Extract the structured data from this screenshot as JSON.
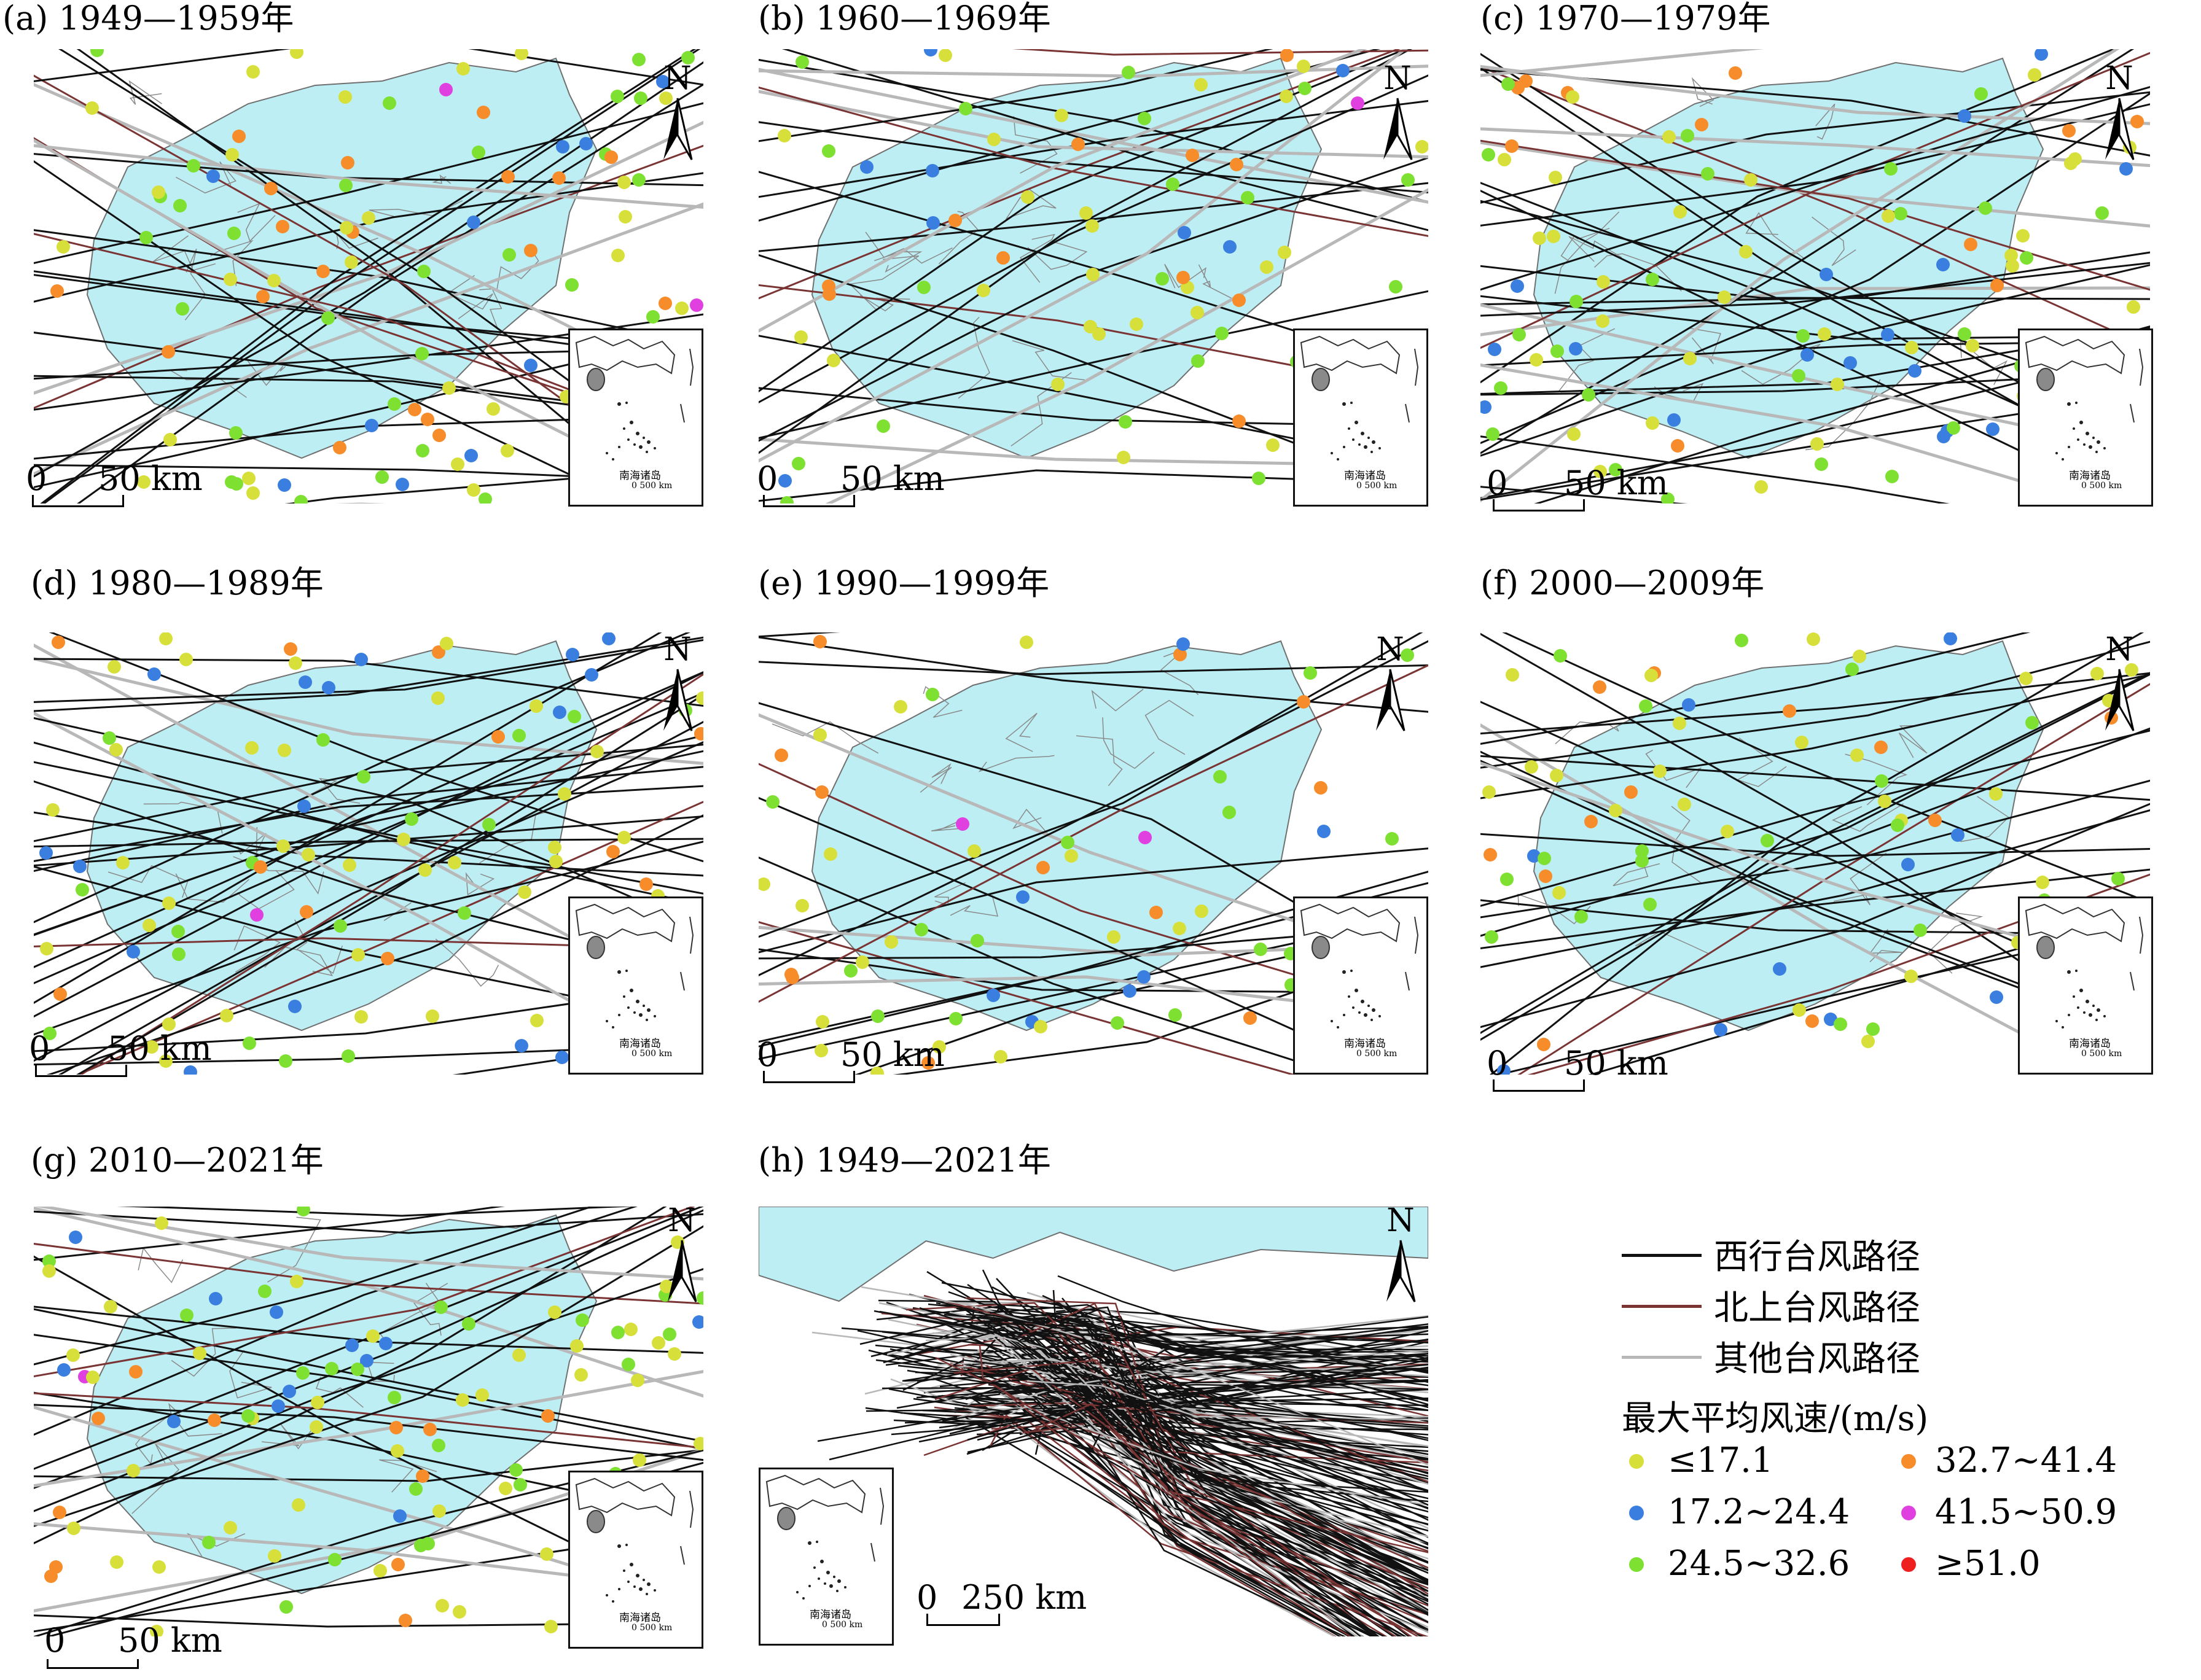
{
  "panels": [
    {
      "id": "a",
      "title": "(a) 1949—1959年",
      "scale_zero": "0",
      "scale_text": "50 km",
      "north": "N",
      "inset_label": "南海诸岛",
      "inset_scale": "0    500 km",
      "seed": 11,
      "n_lines": 34,
      "n_dots": 95
    },
    {
      "id": "b",
      "title": "(b) 1960—1969年",
      "scale_zero": "0",
      "scale_text": "50 km",
      "north": "N",
      "inset_label": "南海诸岛",
      "inset_scale": "0    500 km",
      "seed": 23,
      "n_lines": 28,
      "n_dots": 70
    },
    {
      "id": "c",
      "title": "(c) 1970—1979年",
      "scale_zero": "0",
      "scale_text": "50 km",
      "north": "N",
      "inset_label": "南海诸岛",
      "inset_scale": "0    500 km",
      "seed": 37,
      "n_lines": 36,
      "n_dots": 90
    },
    {
      "id": "d",
      "title": "(d) 1980—1989年",
      "scale_zero": "0",
      "scale_text": "50 km",
      "north": "N",
      "inset_label": "南海诸岛",
      "inset_scale": "0    500 km",
      "seed": 41,
      "n_lines": 36,
      "n_dots": 90
    },
    {
      "id": "e",
      "title": "(e) 1990—1999年",
      "scale_zero": "0",
      "scale_text": "50 km",
      "north": "N",
      "inset_label": "南海诸岛",
      "inset_scale": "0    500 km",
      "seed": 53,
      "n_lines": 22,
      "n_dots": 60
    },
    {
      "id": "f",
      "title": "(f) 2000—2009年",
      "scale_zero": "0",
      "scale_text": "50 km",
      "north": "N",
      "inset_label": "南海诸岛",
      "inset_scale": "0    500 km",
      "seed": 67,
      "n_lines": 28,
      "n_dots": 70
    },
    {
      "id": "g",
      "title": "(g) 2010—2021年",
      "scale_zero": "0",
      "scale_text": "50 km",
      "north": "N",
      "inset_label": "南海诸岛",
      "inset_scale": "0    500 km",
      "seed": 79,
      "n_lines": 30,
      "n_dots": 95
    },
    {
      "id": "h",
      "title": "(h) 1949—2021年",
      "scale_zero": "0",
      "scale_text": "250 km",
      "north": "N",
      "inset_label": "南海诸岛",
      "inset_scale": "0    500 km",
      "seed": 97,
      "n_lines": 220,
      "n_dots": 0
    }
  ],
  "legend": {
    "lines": [
      {
        "label": "西行台风路径",
        "color": "#111111"
      },
      {
        "label": "北上台风路径",
        "color": "#7a3434"
      },
      {
        "label": "其他台风路径",
        "color": "#b8b8b8"
      }
    ],
    "title": "最大平均风速/(m/s)",
    "classes": [
      {
        "label": "≤17.1",
        "color": "#d7e03a"
      },
      {
        "label": "32.7~41.4",
        "color": "#f68c2a"
      },
      {
        "label": "17.2~24.4",
        "color": "#3a7fe0"
      },
      {
        "label": "41.5~50.9",
        "color": "#e040e0"
      },
      {
        "label": "24.5~32.6",
        "color": "#7ee030"
      },
      {
        "label": "≥51.0",
        "color": "#ee2020"
      }
    ]
  },
  "colors": {
    "land": "#bdeef3",
    "boundary": "#707070"
  }
}
